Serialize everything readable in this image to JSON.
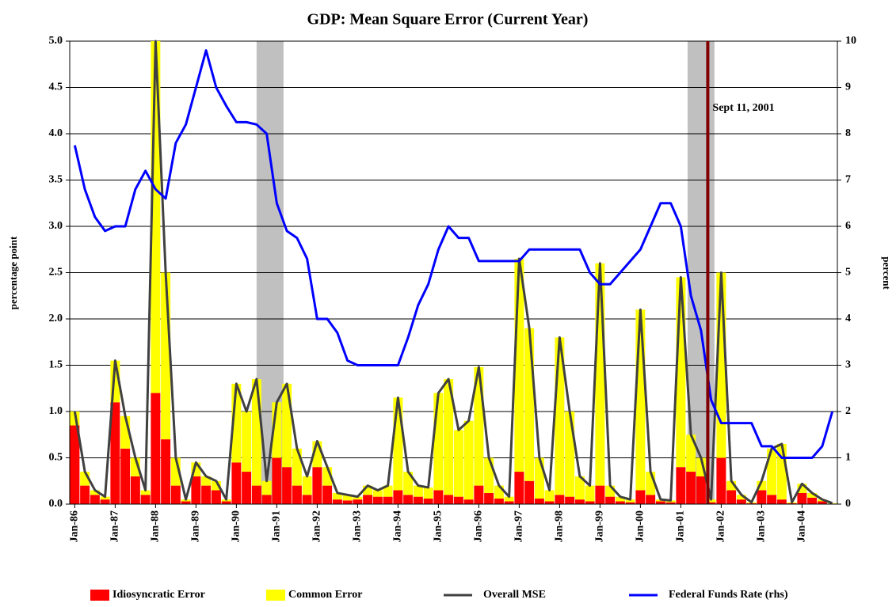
{
  "chart_data": {
    "type": "bar",
    "title": "GDP: Mean Square Error (Current Year)",
    "y_label": "percentage point",
    "y2_label": "percent",
    "categories": [
      "Jan-86",
      null,
      null,
      null,
      "Jan-87",
      null,
      null,
      null,
      "Jan-88",
      null,
      null,
      null,
      "Jan-89",
      null,
      null,
      null,
      "Jan-90",
      null,
      null,
      null,
      "Jan-91",
      null,
      null,
      null,
      "Jan-92",
      null,
      null,
      null,
      "Jan-93",
      null,
      null,
      null,
      "Jan-94",
      null,
      null,
      null,
      "Jan-95",
      null,
      null,
      null,
      "Jan-96",
      null,
      null,
      null,
      "Jan-97",
      null,
      null,
      null,
      "Jan-98",
      null,
      null,
      null,
      "Jan-99",
      null,
      null,
      null,
      "Jan-00",
      null,
      null,
      null,
      "Jan-01",
      null,
      null,
      null,
      "Jan-02",
      null,
      null,
      null,
      "Jan-03",
      null,
      null,
      null,
      "Jan-04",
      null,
      null,
      null
    ],
    "series": [
      {
        "name": "Idiosyncratic Error",
        "kind": "bar",
        "color": "#ff0000",
        "values": [
          0.85,
          0.2,
          0.1,
          0.05,
          1.1,
          0.6,
          0.3,
          0.1,
          1.2,
          0.7,
          0.2,
          0.03,
          0.3,
          0.2,
          0.15,
          0.03,
          0.45,
          0.35,
          0.2,
          0.1,
          0.5,
          0.4,
          0.2,
          0.1,
          0.4,
          0.2,
          0.05,
          0.04,
          0.05,
          0.1,
          0.08,
          0.08,
          0.15,
          0.1,
          0.08,
          0.06,
          0.15,
          0.1,
          0.08,
          0.05,
          0.2,
          0.12,
          0.06,
          0.03,
          0.35,
          0.25,
          0.06,
          0.03,
          0.1,
          0.08,
          0.05,
          0.03,
          0.2,
          0.08,
          0.03,
          0.02,
          0.15,
          0.1,
          0.03,
          0.02,
          0.4,
          0.35,
          0.3,
          0.02,
          0.5,
          0.15,
          0.05,
          0.01,
          0.15,
          0.1,
          0.05,
          0.01,
          0.12,
          0.07,
          0.03,
          0.005
        ]
      },
      {
        "name": "Common Error",
        "kind": "bar",
        "color": "#ffff00",
        "values": [
          0.15,
          0.15,
          0.05,
          0.03,
          0.45,
          0.35,
          0.2,
          0.05,
          3.8,
          1.8,
          0.3,
          0.02,
          0.15,
          0.1,
          0.1,
          0.02,
          0.85,
          0.65,
          1.15,
          0.15,
          0.6,
          0.9,
          0.4,
          0.2,
          0.28,
          0.2,
          0.07,
          0.06,
          0.03,
          0.1,
          0.07,
          0.12,
          1.0,
          0.25,
          0.12,
          0.12,
          1.05,
          1.25,
          0.72,
          0.85,
          1.28,
          0.38,
          0.14,
          0.05,
          2.3,
          1.65,
          0.44,
          0.12,
          1.7,
          0.92,
          0.25,
          0.17,
          2.4,
          0.12,
          0.05,
          0.03,
          1.95,
          0.25,
          0.02,
          0.02,
          2.05,
          0.4,
          0.2,
          0.03,
          2.0,
          0.1,
          0.05,
          0.01,
          0.1,
          0.5,
          0.6,
          0.01,
          0.1,
          0.05,
          0.02,
          0.005
        ]
      },
      {
        "name": "Overall MSE",
        "kind": "line",
        "color": "#404040",
        "values": [
          1.0,
          0.35,
          0.15,
          0.08,
          1.55,
          0.95,
          0.5,
          0.15,
          5.0,
          2.5,
          0.5,
          0.05,
          0.45,
          0.3,
          0.25,
          0.05,
          1.3,
          1.0,
          1.35,
          0.25,
          1.1,
          1.3,
          0.6,
          0.3,
          0.68,
          0.4,
          0.12,
          0.1,
          0.08,
          0.2,
          0.15,
          0.2,
          1.15,
          0.35,
          0.2,
          0.18,
          1.2,
          1.35,
          0.8,
          0.9,
          1.48,
          0.5,
          0.2,
          0.08,
          2.65,
          1.9,
          0.5,
          0.15,
          1.8,
          1.0,
          0.3,
          0.2,
          2.6,
          0.2,
          0.08,
          0.05,
          2.1,
          0.35,
          0.05,
          0.04,
          2.45,
          0.75,
          0.5,
          0.05,
          2.5,
          0.25,
          0.1,
          0.02,
          0.25,
          0.6,
          0.65,
          0.02,
          0.22,
          0.12,
          0.05,
          0.01
        ]
      },
      {
        "name": "Federal Funds Rate (rhs)",
        "kind": "line",
        "axis": "y2",
        "color": "#0000ff",
        "values": [
          7.75,
          6.8,
          6.2,
          5.9,
          6.0,
          6.0,
          6.8,
          7.2,
          6.8,
          6.6,
          7.8,
          8.2,
          9.0,
          9.8,
          9.0,
          8.6,
          8.25,
          8.25,
          8.2,
          8.0,
          6.5,
          5.9,
          5.75,
          5.3,
          4.0,
          4.0,
          3.7,
          3.1,
          3.0,
          3.0,
          3.0,
          3.0,
          3.0,
          3.6,
          4.3,
          4.75,
          5.5,
          6.0,
          5.75,
          5.75,
          5.25,
          5.25,
          5.25,
          5.25,
          5.25,
          5.5,
          5.5,
          5.5,
          5.5,
          5.5,
          5.5,
          5.0,
          4.75,
          4.75,
          5.0,
          5.25,
          5.5,
          6.0,
          6.5,
          6.5,
          6.0,
          4.5,
          3.75,
          2.25,
          1.75,
          1.75,
          1.75,
          1.75,
          1.25,
          1.25,
          1.0,
          1.0,
          1.0,
          1.0,
          1.25,
          2.0
        ]
      }
    ],
    "shaded_periods": [
      [
        18,
        20.67
      ],
      [
        60.67,
        63.33
      ]
    ],
    "shade_color": "#c0c0c0",
    "annotation": {
      "text": "Sept 11, 2001",
      "x": 62.67,
      "color": "#800000"
    },
    "ylim": [
      0,
      5
    ],
    "yticks": [
      {
        "value": 0,
        "label": "0.0"
      },
      {
        "value": 0.5,
        "label": "0.5"
      },
      {
        "value": 1,
        "label": "1.0"
      },
      {
        "value": 1.5,
        "label": "1.5"
      },
      {
        "value": 2,
        "label": "2.0"
      },
      {
        "value": 2.5,
        "label": "2.5"
      },
      {
        "value": 3,
        "label": "3.0"
      },
      {
        "value": 3.5,
        "label": "3.5"
      },
      {
        "value": 4,
        "label": "4.0"
      },
      {
        "value": 4.5,
        "label": "4.5"
      },
      {
        "value": 5,
        "label": "5.0"
      }
    ],
    "y2lim": [
      0,
      10
    ],
    "y2ticks": [
      0,
      1,
      2,
      3,
      4,
      5,
      6,
      7,
      8,
      9,
      10
    ],
    "grid": true,
    "legend": "bottom"
  }
}
